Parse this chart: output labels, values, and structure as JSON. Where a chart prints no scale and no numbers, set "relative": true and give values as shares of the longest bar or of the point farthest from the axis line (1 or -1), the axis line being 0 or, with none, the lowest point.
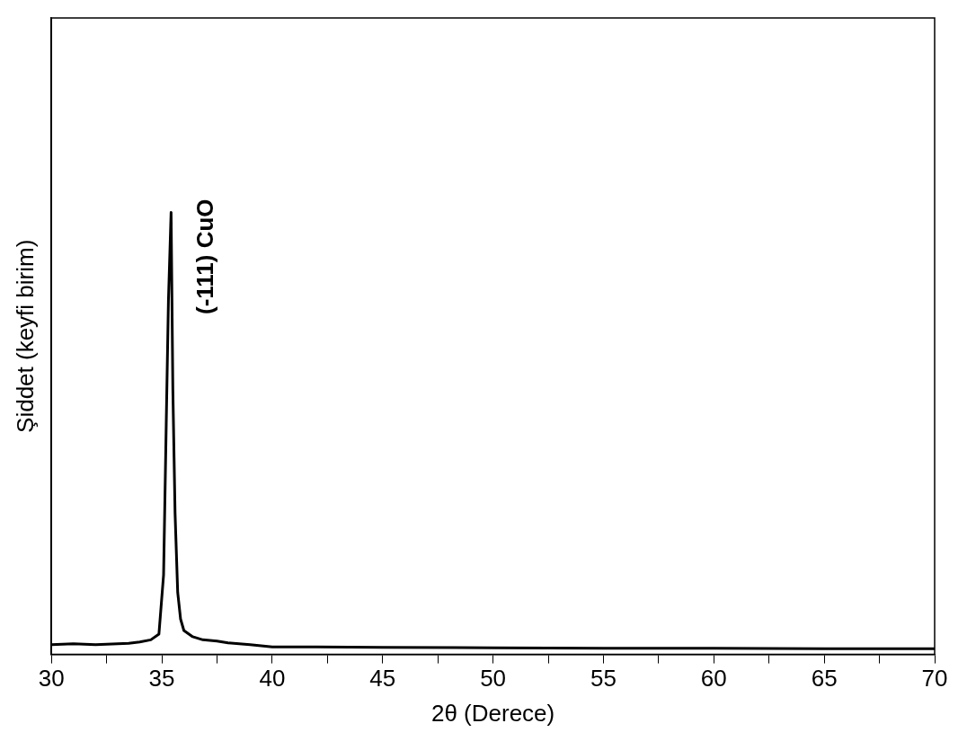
{
  "chart_data": {
    "type": "line",
    "xlabel": "2θ (Derece)",
    "ylabel": "Şiddet (keyfi birim)",
    "relative": true,
    "color": "#000000",
    "legend": false,
    "grid": false,
    "marker": "none",
    "line_style": "solid",
    "x": [
      30,
      31,
      32,
      33,
      33.5,
      34,
      34.5,
      34.87,
      35.08,
      35.2,
      35.3,
      35.42,
      35.5,
      35.6,
      35.72,
      35.85,
      36,
      36.4,
      36.86,
      37.5,
      38,
      39,
      40,
      42,
      45,
      50,
      55,
      60,
      65,
      70
    ],
    "values": [
      0.022,
      0.024,
      0.022,
      0.024,
      0.025,
      0.028,
      0.033,
      0.046,
      0.18,
      0.52,
      0.8,
      1.0,
      0.6,
      0.32,
      0.14,
      0.08,
      0.054,
      0.04,
      0.033,
      0.03,
      0.026,
      0.022,
      0.017,
      0.017,
      0.016,
      0.015,
      0.014,
      0.014,
      0.013,
      0.013
    ],
    "xlim": [
      30,
      70
    ],
    "xticks": [
      30,
      {
        "value": 32.5,
        "label": null
      },
      35,
      {
        "value": 37.5,
        "label": null
      },
      40,
      {
        "value": 42.5,
        "label": null
      },
      45,
      {
        "value": 47.5,
        "label": null
      },
      50,
      {
        "value": 52.5,
        "label": null
      },
      55,
      {
        "value": 57.5,
        "label": null
      },
      60,
      {
        "value": 62.5,
        "label": null
      },
      65,
      {
        "value": 67.5,
        "label": null
      },
      70
    ],
    "annotations": [
      "(-111) CuO"
    ]
  }
}
